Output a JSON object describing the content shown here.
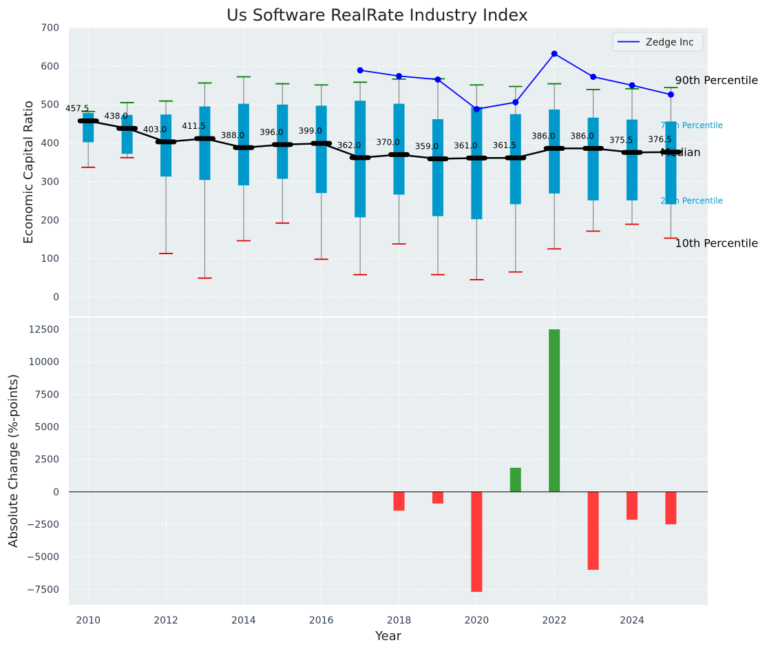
{
  "title": "Us Software RealRate Industry Index",
  "colors": {
    "panel_bg": "#e9eff0",
    "box": "#0099cc",
    "median": "#000000",
    "p90_cap": "#008000",
    "p10_cap": "#e00000",
    "whisker": "#888888",
    "company": "#0000ff",
    "pos_bar": "#3a9f3a",
    "neg_bar": "#ff3b3b"
  },
  "chart_data": [
    {
      "type": "box",
      "ylabel": "Economic Capital Ratio",
      "ylim": [
        -50,
        700
      ],
      "yticks": [
        0,
        100,
        200,
        300,
        400,
        500,
        600,
        700
      ],
      "xlim": [
        2009.5,
        2025.95
      ],
      "grid": true,
      "legend": {
        "position": "top-right",
        "entries": [
          "Zedge Inc"
        ]
      },
      "years": [
        2010,
        2011,
        2012,
        2013,
        2014,
        2015,
        2016,
        2017,
        2018,
        2019,
        2020,
        2021,
        2022,
        2023,
        2024,
        2025
      ],
      "median": [
        457.5,
        438.0,
        403.0,
        411.5,
        388.0,
        396.0,
        399.0,
        362.0,
        370.0,
        359.0,
        361.0,
        361.5,
        386.0,
        386.0,
        375.5,
        376.5
      ],
      "median_labels": [
        "457.5",
        "438.0",
        "403.0",
        "411.5",
        "388.0",
        "396.0",
        "399.0",
        "362.0",
        "370.0",
        "359.0",
        "361.0",
        "361.5",
        "386.0",
        "386.0",
        "375.5",
        "376.5"
      ],
      "p25": [
        402,
        372,
        313,
        304,
        290,
        307,
        270,
        207,
        266,
        210,
        202,
        241,
        269,
        251,
        251,
        241
      ],
      "p75": [
        478,
        473,
        474,
        495,
        502,
        500,
        497,
        510,
        502,
        462,
        494,
        475,
        487,
        466,
        461,
        456
      ],
      "p90": [
        482,
        505,
        509,
        556,
        572,
        554,
        551,
        558,
        566,
        567,
        551,
        547,
        554,
        539,
        541,
        544
      ],
      "p10": [
        337,
        362,
        113,
        49,
        146,
        192,
        98,
        58,
        138,
        58,
        45,
        65,
        125,
        171,
        189,
        153
      ],
      "series": [
        {
          "name": "Zedge Inc",
          "x": [
            2017,
            2018,
            2019,
            2020,
            2021,
            2022,
            2023,
            2024,
            2025
          ],
          "values": [
            589,
            574,
            565,
            488,
            506,
            632,
            572,
            550,
            526
          ]
        }
      ],
      "annotations": {
        "p90": "90th Percentile",
        "p75": "75th Percentile",
        "median": "Median",
        "p25": "25th Percentile",
        "p10": "10th Percentile"
      }
    },
    {
      "type": "bar",
      "xlabel": "Year",
      "ylabel": "Absolute Change (%-points)",
      "ylim": [
        -8700,
        13400
      ],
      "yticks": [
        -7500,
        -5000,
        -2500,
        0,
        2500,
        5000,
        7500,
        10000,
        12500
      ],
      "xticks": [
        2010,
        2012,
        2014,
        2016,
        2018,
        2020,
        2022,
        2024
      ],
      "grid": true,
      "x": [
        2018,
        2019,
        2020,
        2021,
        2022,
        2023,
        2024,
        2025
      ],
      "values": [
        -1450,
        -900,
        -7700,
        1850,
        12500,
        -6000,
        -2150,
        -2500
      ]
    }
  ]
}
